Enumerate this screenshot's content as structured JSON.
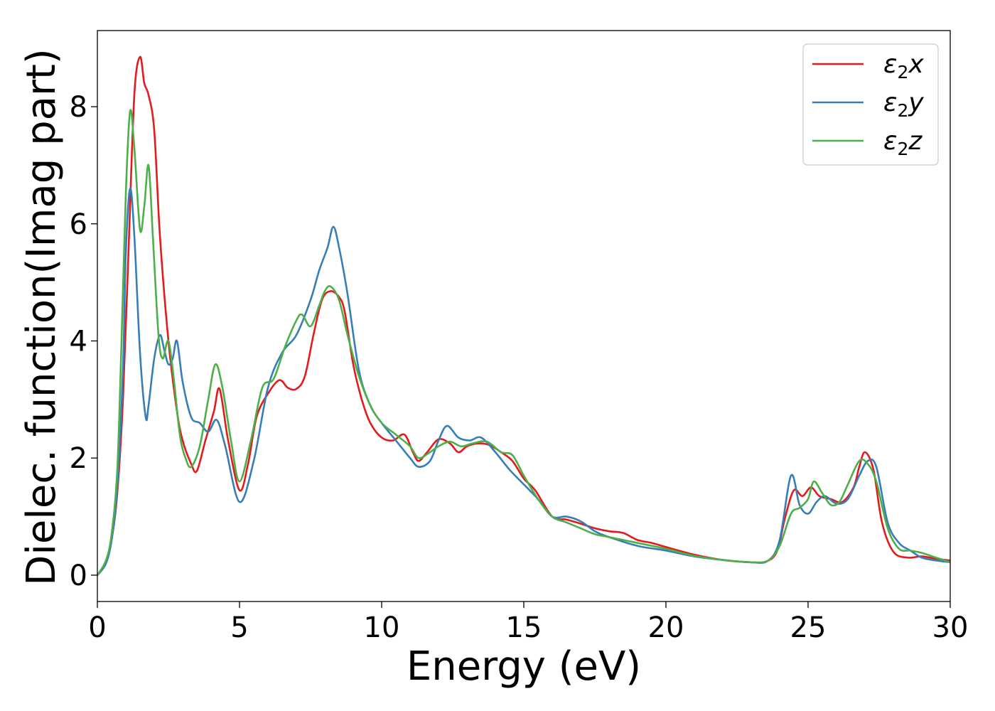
{
  "chart_data": {
    "type": "line",
    "title": "",
    "xlabel": "Energy (eV)",
    "ylabel": "Dielec. function(Imag part)",
    "xlim": [
      0,
      30
    ],
    "ylim": [
      -0.45,
      9.3
    ],
    "xticks": [
      0,
      5,
      10,
      15,
      20,
      25,
      30
    ],
    "yticks": [
      0,
      2,
      4,
      6,
      8
    ],
    "grid": false,
    "legend_position": "top-right",
    "series": [
      {
        "name": "ε₂x",
        "legend_sub": "2",
        "legend_main": "x",
        "color": "#e41a1c",
        "x": [
          0,
          0.3,
          0.5,
          0.7,
          0.9,
          1.1,
          1.3,
          1.5,
          1.65,
          1.8,
          2.0,
          2.2,
          2.5,
          2.8,
          3.0,
          3.3,
          3.5,
          3.8,
          4.1,
          4.3,
          4.6,
          5.0,
          5.3,
          5.6,
          6.0,
          6.4,
          6.7,
          7.0,
          7.3,
          7.6,
          7.9,
          8.2,
          8.5,
          8.7,
          9.0,
          9.3,
          9.6,
          10.0,
          10.4,
          10.8,
          11.1,
          11.3,
          11.6,
          12.0,
          12.4,
          12.7,
          13.0,
          13.4,
          13.8,
          14.2,
          14.6,
          15.0,
          15.4,
          16.0,
          16.5,
          17.0,
          17.5,
          18.0,
          18.5,
          19.0,
          19.5,
          20.0,
          21.0,
          22.0,
          23.0,
          23.5,
          23.9,
          24.2,
          24.5,
          24.8,
          25.1,
          25.4,
          25.8,
          26.2,
          26.6,
          26.8,
          27.0,
          27.3,
          27.6,
          28.0,
          28.5,
          29.0,
          29.5,
          30.0
        ],
        "values": [
          0,
          0.2,
          0.6,
          1.4,
          3.0,
          5.6,
          8.2,
          8.85,
          8.4,
          8.2,
          7.6,
          5.8,
          4.0,
          2.8,
          2.3,
          1.9,
          1.78,
          2.3,
          2.8,
          3.18,
          2.3,
          1.45,
          1.9,
          2.7,
          3.1,
          3.33,
          3.2,
          3.18,
          3.4,
          4.1,
          4.7,
          4.85,
          4.75,
          4.5,
          3.6,
          3.0,
          2.6,
          2.35,
          2.3,
          2.4,
          2.1,
          1.95,
          2.1,
          2.32,
          2.25,
          2.1,
          2.2,
          2.25,
          2.22,
          2.1,
          1.95,
          1.65,
          1.45,
          1.0,
          0.95,
          0.88,
          0.8,
          0.75,
          0.72,
          0.6,
          0.55,
          0.48,
          0.35,
          0.26,
          0.22,
          0.23,
          0.4,
          1.0,
          1.45,
          1.35,
          1.5,
          1.35,
          1.3,
          1.25,
          1.5,
          1.85,
          2.1,
          1.8,
          0.9,
          0.4,
          0.3,
          0.32,
          0.28,
          0.25
        ]
      },
      {
        "name": "ε₂y",
        "legend_sub": "2",
        "legend_main": "y",
        "color": "#377eb8",
        "x": [
          0,
          0.3,
          0.5,
          0.7,
          0.9,
          1.0,
          1.15,
          1.3,
          1.5,
          1.7,
          1.8,
          2.0,
          2.2,
          2.35,
          2.5,
          2.65,
          2.8,
          3.0,
          3.3,
          3.6,
          3.9,
          4.2,
          4.5,
          5.0,
          5.5,
          6.0,
          6.5,
          7.0,
          7.5,
          7.8,
          8.1,
          8.3,
          8.5,
          8.8,
          9.2,
          9.6,
          10.0,
          10.5,
          11.0,
          11.3,
          11.7,
          12.0,
          12.3,
          12.7,
          13.1,
          13.5,
          14.0,
          14.5,
          15.0,
          15.5,
          16.0,
          16.5,
          17.0,
          17.5,
          18.0,
          19.0,
          20.0,
          21.0,
          22.0,
          23.0,
          23.6,
          24.0,
          24.4,
          24.7,
          25.0,
          25.3,
          25.6,
          26.0,
          26.4,
          26.8,
          27.1,
          27.4,
          27.8,
          28.2,
          28.6,
          29.0,
          29.5,
          30.0
        ],
        "values": [
          0,
          0.2,
          0.6,
          1.5,
          3.5,
          5.5,
          6.6,
          5.8,
          3.8,
          2.7,
          2.9,
          3.7,
          4.1,
          3.85,
          3.6,
          3.7,
          4.0,
          3.3,
          2.7,
          2.6,
          2.45,
          2.65,
          2.2,
          1.25,
          1.95,
          3.2,
          3.8,
          4.1,
          4.7,
          5.2,
          5.6,
          5.95,
          5.6,
          4.8,
          3.5,
          2.9,
          2.6,
          2.3,
          2.0,
          1.85,
          1.95,
          2.3,
          2.55,
          2.35,
          2.3,
          2.35,
          2.1,
          1.8,
          1.55,
          1.3,
          1.0,
          1.0,
          0.92,
          0.75,
          0.65,
          0.5,
          0.42,
          0.32,
          0.26,
          0.22,
          0.25,
          0.6,
          1.7,
          1.2,
          1.05,
          1.25,
          1.35,
          1.22,
          1.3,
          1.7,
          1.95,
          1.85,
          0.9,
          0.55,
          0.42,
          0.3,
          0.25,
          0.22
        ]
      },
      {
        "name": "ε₂z",
        "legend_sub": "2",
        "legend_main": "z",
        "color": "#4daf4a",
        "x": [
          0,
          0.3,
          0.5,
          0.7,
          0.85,
          1.0,
          1.15,
          1.3,
          1.5,
          1.65,
          1.8,
          1.95,
          2.15,
          2.3,
          2.5,
          2.7,
          2.9,
          3.1,
          3.3,
          3.6,
          3.9,
          4.15,
          4.4,
          4.7,
          5.0,
          5.4,
          5.8,
          6.2,
          6.6,
          7.0,
          7.2,
          7.5,
          7.8,
          8.0,
          8.2,
          8.5,
          8.8,
          9.2,
          9.6,
          10.0,
          10.5,
          11.0,
          11.3,
          11.7,
          12.0,
          12.4,
          12.8,
          13.2,
          13.7,
          14.2,
          14.6,
          15.0,
          15.5,
          16.0,
          16.5,
          17.0,
          17.5,
          18.0,
          19.0,
          20.0,
          21.0,
          22.0,
          23.0,
          23.6,
          24.0,
          24.4,
          24.7,
          25.0,
          25.2,
          25.5,
          25.8,
          26.1,
          26.4,
          26.8,
          27.1,
          27.4,
          27.8,
          28.2,
          28.6,
          29.0,
          29.5,
          30.0
        ],
        "values": [
          0,
          0.25,
          0.7,
          1.8,
          4.0,
          6.5,
          7.92,
          7.3,
          5.9,
          6.3,
          7.0,
          5.8,
          4.1,
          3.7,
          4.0,
          3.3,
          2.4,
          2.0,
          1.85,
          2.2,
          3.0,
          3.6,
          3.2,
          2.3,
          1.6,
          2.3,
          3.2,
          3.35,
          3.9,
          4.35,
          4.45,
          4.25,
          4.6,
          4.85,
          4.93,
          4.7,
          4.1,
          3.4,
          2.9,
          2.6,
          2.4,
          2.2,
          2.0,
          2.1,
          2.2,
          2.28,
          2.2,
          2.25,
          2.28,
          2.1,
          2.05,
          1.7,
          1.3,
          1.0,
          0.9,
          0.8,
          0.7,
          0.65,
          0.55,
          0.45,
          0.33,
          0.26,
          0.22,
          0.25,
          0.5,
          1.05,
          1.15,
          1.3,
          1.6,
          1.4,
          1.2,
          1.25,
          1.55,
          1.95,
          1.9,
          1.6,
          0.8,
          0.45,
          0.42,
          0.38,
          0.3,
          0.22
        ]
      }
    ]
  }
}
